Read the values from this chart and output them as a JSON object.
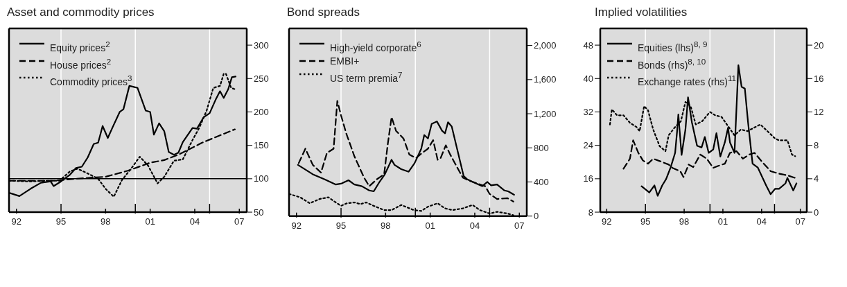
{
  "chart_data": [
    {
      "type": "line",
      "title": "Asset and commodity prices",
      "legend": "top left",
      "grid": true,
      "xlim": [
        1991.5,
        2007.5
      ],
      "xticks": [
        {
          "value": 1992,
          "label": "92"
        },
        {
          "value": 1995,
          "label": "95"
        },
        {
          "value": 1998,
          "label": "98"
        },
        {
          "value": 2000,
          "label": null
        },
        {
          "value": 2001,
          "label": "01"
        },
        {
          "value": 2004,
          "label": "04"
        },
        {
          "value": 2005,
          "label": null
        },
        {
          "value": 2007,
          "label": "07"
        }
      ],
      "ylim": [
        50,
        325
      ],
      "yticks": [
        50,
        100,
        150,
        200,
        250,
        300
      ],
      "ref_lines": [
        {
          "axis": "y",
          "value": 100,
          "color": "#000000"
        }
      ],
      "series": [
        {
          "name": "Equity prices$^{2}$",
          "color": "#000000",
          "line_style": "solid",
          "x": [
            1991.5,
            1992.2,
            1992.95,
            1993.65,
            1994.3,
            1994.5,
            1995.0,
            1995.6,
            1996.0,
            1996.4,
            1996.8,
            1997.2,
            1997.5,
            1997.8,
            1998.15,
            1998.45,
            1998.95,
            1999.2,
            1999.6,
            1999.8,
            2000.15,
            2000.7,
            2001.0,
            2001.25,
            2001.6,
            2001.95,
            2002.25,
            2002.6,
            2002.9,
            2003.2,
            2003.85,
            2004.15,
            2004.6,
            2005.0,
            2005.4,
            2005.7,
            2005.95,
            2006.25,
            2006.5,
            2006.75
          ],
          "values": [
            79,
            74,
            85,
            94,
            96,
            89,
            96,
            106,
            116,
            118,
            132,
            152,
            154,
            179,
            161,
            176,
            200,
            204,
            239,
            238,
            236,
            202,
            200,
            166,
            183,
            171,
            140,
            136,
            139,
            155,
            176,
            175,
            192,
            198,
            218,
            231,
            221,
            234,
            252,
            253
          ]
        },
        {
          "name": "House prices$^{2}$",
          "color": "#000000",
          "line_style": "dashed",
          "x": [
            1991.5,
            1994.5,
            1996.0,
            1998.0,
            1999.5,
            2001.0,
            2001.95,
            2002.9,
            2004.5,
            2006.7
          ],
          "values": [
            97,
            97,
            100,
            103,
            112,
            124,
            128,
            136,
            154,
            174
          ]
        },
        {
          "name": "Commodity prices$^{3}$",
          "color": "#000000",
          "line_style": "dotted",
          "x": [
            1991.5,
            1992.95,
            1994.05,
            1994.9,
            1995.6,
            1996.1,
            1996.7,
            1997.5,
            1998.0,
            1998.55,
            1999.1,
            1999.75,
            2000.3,
            2000.85,
            2001.5,
            2001.95,
            2002.6,
            2003.2,
            2003.85,
            2004.3,
            2004.8,
            2005.25,
            2005.7,
            2005.95,
            2006.1,
            2006.45,
            2006.7
          ],
          "values": [
            97,
            96,
            97,
            97,
            111,
            115,
            109,
            100,
            85,
            73,
            98,
            116,
            133,
            120,
            93,
            103,
            127,
            129,
            158,
            176,
            202,
            236,
            239,
            257,
            257,
            236,
            234
          ]
        }
      ]
    },
    {
      "type": "line",
      "title": "Bond spreads",
      "legend": "top left",
      "grid": true,
      "xlim": [
        1991.5,
        2007.5
      ],
      "xticks": [
        {
          "value": 1992,
          "label": "92"
        },
        {
          "value": 1995,
          "label": "95"
        },
        {
          "value": 1998,
          "label": "98"
        },
        {
          "value": 2000,
          "label": null
        },
        {
          "value": 2001,
          "label": "01"
        },
        {
          "value": 2004,
          "label": "04"
        },
        {
          "value": 2005,
          "label": null
        },
        {
          "value": 2007,
          "label": "07"
        }
      ],
      "ylim": [
        0,
        2200
      ],
      "yticks": [
        0,
        400,
        800,
        {
          "value": 1200,
          "label": "1,200"
        },
        {
          "value": 1600,
          "label": "1,600"
        },
        {
          "value": 2000,
          "label": "2,000"
        }
      ],
      "series": [
        {
          "name": "High-yield corporate$^{6}$",
          "color": "#000000",
          "line_style": "solid",
          "x": [
            1992.1,
            1993.1,
            1993.9,
            1994.65,
            1995.0,
            1995.5,
            1995.9,
            1996.4,
            1996.9,
            1997.2,
            1997.55,
            1997.95,
            1998.4,
            1998.6,
            1999.05,
            1999.55,
            1999.95,
            2000.4,
            2000.6,
            2000.85,
            2001.1,
            2001.45,
            2001.8,
            2002.0,
            2002.2,
            2002.45,
            2002.85,
            2003.25,
            2003.5,
            2004.0,
            2004.5,
            2004.85,
            2005.1,
            2005.5,
            2006.0,
            2006.25,
            2006.65
          ],
          "values": [
            600,
            490,
            430,
            370,
            380,
            420,
            370,
            350,
            300,
            290,
            390,
            490,
            660,
            600,
            550,
            520,
            620,
            790,
            950,
            910,
            1080,
            1110,
            1000,
            970,
            1100,
            1050,
            760,
            470,
            430,
            390,
            350,
            400,
            360,
            370,
            300,
            290,
            250
          ]
        },
        {
          "name": "EMBI+",
          "color": "#000000",
          "line_style": "dashed",
          "x": [
            1992.15,
            1992.6,
            1993.1,
            1993.65,
            1994.05,
            1994.5,
            1994.75,
            1995.0,
            1995.35,
            1995.9,
            1996.55,
            1996.9,
            1997.4,
            1997.9,
            1998.15,
            1998.4,
            1998.7,
            1999.2,
            1999.6,
            2000.05,
            2000.45,
            2000.85,
            2001.2,
            2001.5,
            2001.7,
            2002.05,
            2002.35,
            2002.85,
            2003.2,
            2003.7,
            2004.2,
            2004.7,
            2005.0,
            2005.5,
            2006.2,
            2006.6
          ],
          "values": [
            620,
            790,
            600,
            510,
            740,
            790,
            1350,
            1180,
            970,
            700,
            450,
            350,
            430,
            490,
            850,
            1160,
            1000,
            910,
            720,
            680,
            740,
            790,
            890,
            660,
            680,
            830,
            720,
            560,
            450,
            410,
            380,
            350,
            260,
            200,
            210,
            170
          ]
        },
        {
          "name": "US term premia$^{7}$",
          "color": "#000000",
          "line_style": "dotted",
          "x": [
            1991.5,
            1992.25,
            1992.9,
            1993.55,
            1994.15,
            1994.65,
            1995.0,
            1995.4,
            1995.9,
            1996.3,
            1996.7,
            1997.2,
            1997.9,
            1998.4,
            1999.05,
            1999.9,
            2000.4,
            2000.85,
            2001.5,
            2002.0,
            2002.5,
            2003.2,
            2003.85,
            2004.35,
            2005.0,
            2005.5,
            2006.2,
            2006.6
          ],
          "values": [
            260,
            220,
            150,
            200,
            220,
            160,
            120,
            150,
            160,
            140,
            160,
            120,
            70,
            70,
            130,
            70,
            60,
            110,
            150,
            90,
            70,
            90,
            130,
            70,
            30,
            50,
            30,
            10
          ]
        }
      ]
    },
    {
      "type": "line",
      "title": "Implied volatilities",
      "legend": "top left",
      "grid": true,
      "xlim": [
        1991.5,
        2007.5
      ],
      "xticks": [
        {
          "value": 1992,
          "label": "92"
        },
        {
          "value": 1995,
          "label": "95"
        },
        {
          "value": 1998,
          "label": "98"
        },
        {
          "value": 2000,
          "label": null
        },
        {
          "value": 2001,
          "label": "01"
        },
        {
          "value": 2004,
          "label": "04"
        },
        {
          "value": 2005,
          "label": null
        },
        {
          "value": 2007,
          "label": "07"
        }
      ],
      "ylim": [
        8,
        52
      ],
      "yticks": [
        8,
        16,
        24,
        32,
        40,
        48
      ],
      "y2lim": [
        0,
        22
      ],
      "y2ticks": [
        0,
        4,
        8,
        12,
        16,
        20
      ],
      "series": [
        {
          "name": "Equities (lhs)$^{8, 9}$",
          "color": "#000000",
          "line_style": "solid",
          "x": [
            1994.7,
            1995.3,
            1995.7,
            1995.95,
            1996.3,
            1996.6,
            1996.95,
            1997.3,
            1997.45,
            1997.55,
            1997.8,
            1998.1,
            1998.3,
            1998.6,
            1999.0,
            1999.35,
            1999.6,
            1999.9,
            2000.25,
            2000.5,
            2000.8,
            2001.15,
            2001.4,
            2001.55,
            2001.9,
            2002.2,
            2002.45,
            2002.7,
            2002.95,
            2003.3,
            2003.7,
            2004.35,
            2004.7,
            2005.05,
            2005.35,
            2005.85,
            2006.0,
            2006.45,
            2006.7
          ],
          "values": [
            14.2,
            12.7,
            14.4,
            11.9,
            14.4,
            15.9,
            18.7,
            22.2,
            27.3,
            31.4,
            21.7,
            27.8,
            35.5,
            29.5,
            23.9,
            23.5,
            26.0,
            22.2,
            23.0,
            26.9,
            21.3,
            24.7,
            28.2,
            24.7,
            22.2,
            43.2,
            38.0,
            37.6,
            29.5,
            19.6,
            18.7,
            14.4,
            12.3,
            13.6,
            13.6,
            14.9,
            16.2,
            13.2,
            14.9
          ]
        },
        {
          "name": "Bonds (rhs)$^{8, 10}$",
          "color": "#000000",
          "line_style": "dashed",
          "axis": "y2",
          "x": [
            1993.3,
            1993.8,
            1994.05,
            1994.45,
            1994.8,
            1995.2,
            1995.6,
            1996.3,
            1996.8,
            1997.1,
            1997.7,
            1997.95,
            1998.35,
            1998.7,
            1999.25,
            1999.75,
            2000.25,
            2000.75,
            2001.15,
            2001.55,
            2002.05,
            2002.55,
            2003.05,
            2003.45,
            2004.05,
            2004.7,
            2005.35,
            2006.0,
            2006.6
          ],
          "values": [
            5.2,
            6.4,
            8.6,
            7.1,
            6.2,
            5.8,
            6.4,
            6.0,
            5.7,
            5.3,
            4.9,
            4.2,
            5.7,
            5.4,
            6.9,
            6.4,
            5.3,
            5.6,
            5.8,
            7.1,
            7.3,
            6.4,
            6.9,
            7.1,
            6.0,
            4.9,
            4.6,
            4.4,
            4.1
          ]
        },
        {
          "name": "Exchange rates (rhs)$^{11}$",
          "color": "#000000",
          "line_style": "dotted",
          "axis": "y2",
          "x": [
            1992.25,
            1992.4,
            1992.8,
            1993.3,
            1993.8,
            1994.3,
            1994.55,
            1994.9,
            1995.2,
            1995.6,
            1996.1,
            1996.55,
            1996.8,
            1997.25,
            1997.75,
            1998.1,
            1998.5,
            1998.9,
            1999.4,
            2000.0,
            2000.4,
            2000.9,
            2001.4,
            2001.9,
            2002.4,
            2002.9,
            2003.4,
            2003.9,
            2004.45,
            2005.05,
            2005.35,
            2006.0,
            2006.35,
            2006.6
          ],
          "values": [
            10.5,
            12.3,
            11.6,
            11.6,
            10.7,
            10.2,
            9.7,
            12.7,
            12.2,
            9.9,
            7.9,
            7.3,
            9.2,
            10.1,
            10.9,
            13.2,
            12.7,
            10.5,
            10.9,
            12.0,
            11.6,
            11.4,
            10.3,
            9.2,
            9.9,
            9.7,
            10.1,
            10.5,
            9.7,
            8.8,
            8.6,
            8.6,
            6.9,
            6.7
          ]
        }
      ]
    }
  ]
}
